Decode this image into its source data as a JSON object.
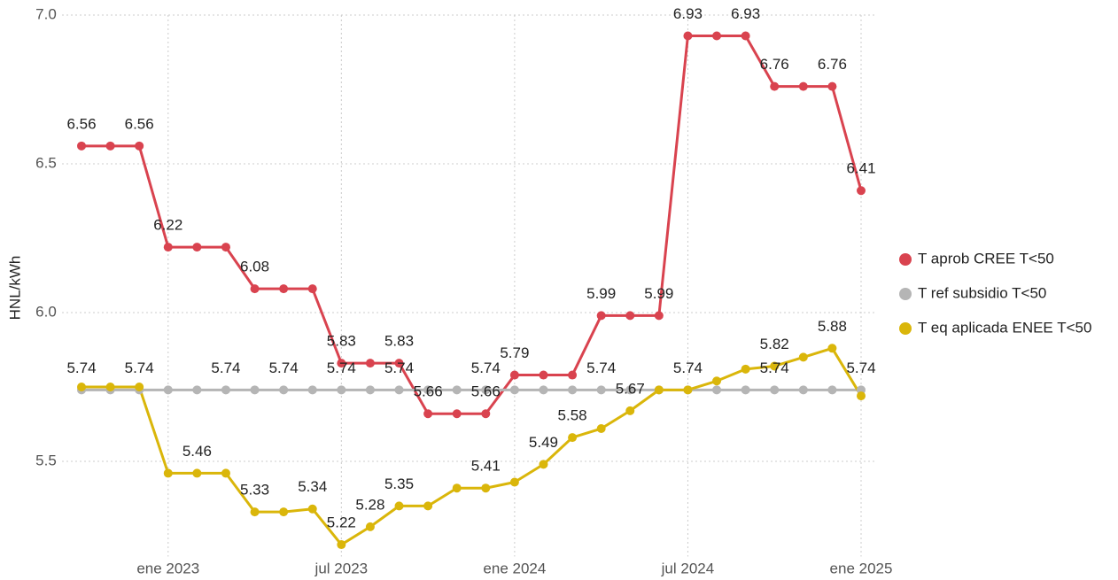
{
  "chart_data": {
    "type": "line",
    "y_label": "HNL/kWh",
    "categories": [
      null,
      null,
      null,
      "ene 2023",
      null,
      null,
      null,
      null,
      null,
      "jul 2023",
      null,
      null,
      null,
      null,
      null,
      "ene 2024",
      null,
      null,
      null,
      null,
      null,
      "jul 2024",
      null,
      null,
      null,
      null,
      null,
      "ene 2025"
    ],
    "series": [
      {
        "name": "T aprob CREE T<50",
        "color": "#d9434f",
        "values": [
          6.56,
          6.56,
          6.56,
          6.22,
          6.22,
          6.22,
          6.08,
          6.08,
          6.08,
          5.83,
          5.83,
          5.83,
          5.66,
          5.66,
          5.66,
          5.79,
          5.79,
          5.79,
          5.99,
          5.99,
          5.99,
          6.93,
          6.93,
          6.93,
          6.76,
          6.76,
          6.76,
          6.41
        ],
        "value_labels": [
          "6.56",
          null,
          "6.56",
          "6.22",
          null,
          null,
          "6.08",
          null,
          null,
          "5.83",
          null,
          "5.83",
          "5.66",
          null,
          "5.66",
          "5.79",
          null,
          null,
          "5.99",
          null,
          "5.99",
          "6.93",
          null,
          "6.93",
          "6.76",
          null,
          "6.76",
          "6.41"
        ]
      },
      {
        "name": "T ref subsidio T<50",
        "color": "#b5b5b5",
        "values": [
          5.74,
          5.74,
          5.74,
          5.74,
          5.74,
          5.74,
          5.74,
          5.74,
          5.74,
          5.74,
          5.74,
          5.74,
          5.74,
          5.74,
          5.74,
          5.74,
          5.74,
          5.74,
          5.74,
          5.74,
          5.74,
          5.74,
          5.74,
          5.74,
          5.74,
          5.74,
          5.74,
          5.74
        ],
        "value_labels": [
          "5.74",
          null,
          "5.74",
          null,
          null,
          "5.74",
          null,
          "5.74",
          null,
          "5.74",
          null,
          "5.74",
          null,
          null,
          "5.74",
          null,
          null,
          null,
          "5.74",
          null,
          null,
          "5.74",
          null,
          null,
          "5.74",
          null,
          null,
          "5.74"
        ]
      },
      {
        "name": "T eq aplicada ENEE T<50",
        "color": "#dab60a",
        "values": [
          5.75,
          5.75,
          5.75,
          5.46,
          5.46,
          5.46,
          5.33,
          5.33,
          5.34,
          5.22,
          5.28,
          5.35,
          5.35,
          5.41,
          5.41,
          5.43,
          5.49,
          5.58,
          5.61,
          5.67,
          5.74,
          5.74,
          5.77,
          5.81,
          5.82,
          5.85,
          5.88,
          5.72
        ],
        "value_labels": [
          null,
          null,
          null,
          null,
          "5.46",
          null,
          "5.33",
          null,
          "5.34",
          "5.22",
          "5.28",
          "5.35",
          null,
          null,
          "5.41",
          null,
          "5.49",
          "5.58",
          null,
          "5.67",
          null,
          null,
          null,
          null,
          "5.82",
          null,
          "5.88",
          null
        ]
      }
    ],
    "ylim": [
      5.18,
      7.0
    ],
    "yticks": [
      5.5,
      {
        "value": 6.0,
        "label": "6.0"
      },
      6.5,
      {
        "value": 7.0,
        "label": "7.0"
      }
    ],
    "grid": true,
    "legend": "right"
  }
}
